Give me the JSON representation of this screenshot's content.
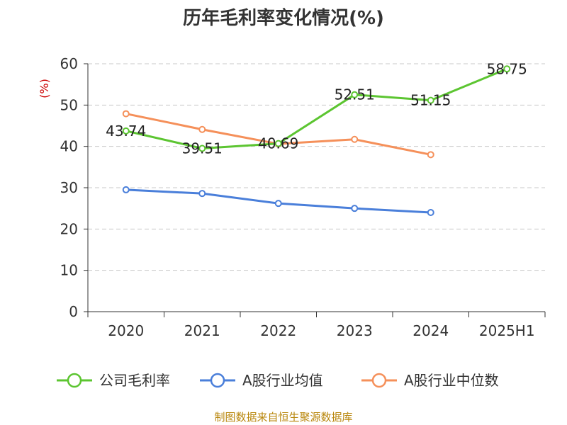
{
  "chart_data": {
    "type": "line",
    "title": "历年毛利率变化情况(%)",
    "ylabel": "(%)",
    "categories": [
      "2020",
      "2021",
      "2022",
      "2023",
      "2024",
      "2025H1"
    ],
    "ylim": [
      0,
      60
    ],
    "yticks": [
      0,
      10,
      20,
      30,
      40,
      50,
      60
    ],
    "grid": true,
    "legend_position": "bottom",
    "series": [
      {
        "name": "公司毛利率",
        "color": "#5cc531",
        "values": [
          43.74,
          39.51,
          40.69,
          52.51,
          51.15,
          58.75
        ],
        "labels": [
          "43.74",
          "39.51",
          "40.69",
          "52.51",
          "51.15",
          "58.75"
        ]
      },
      {
        "name": "A股行业均值",
        "color": "#4a7fda",
        "values": [
          29.5,
          28.6,
          26.2,
          25.0,
          24.0,
          null
        ]
      },
      {
        "name": "A股行业中位数",
        "color": "#f5905a",
        "values": [
          47.9,
          44.1,
          40.6,
          41.7,
          38.0,
          null
        ]
      }
    ],
    "source": "制图数据来自恒生聚源数据库"
  }
}
